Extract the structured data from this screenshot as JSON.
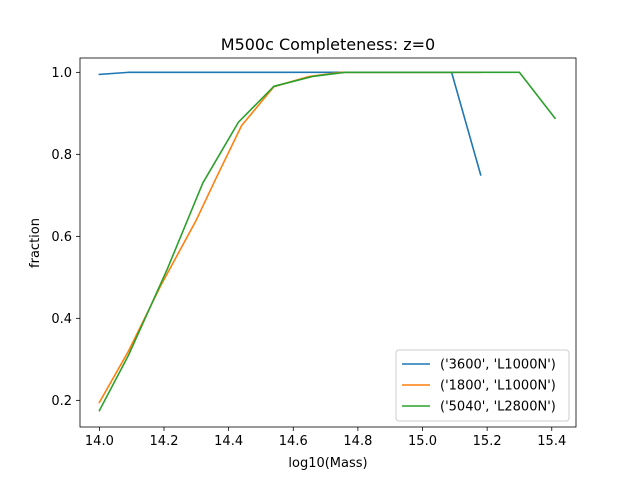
{
  "chart_data": {
    "type": "line",
    "title": "M500c Completeness: z=0",
    "xlabel": "log10(Mass)",
    "ylabel": "fraction",
    "xlim": [
      13.94,
      15.475
    ],
    "ylim": [
      0.135,
      1.035
    ],
    "xticks": [
      14.0,
      14.2,
      14.4,
      14.6,
      14.8,
      15.0,
      15.2,
      15.4
    ],
    "xtick_labels": [
      "14.0",
      "14.2",
      "14.4",
      "14.6",
      "14.8",
      "15.0",
      "15.2",
      "15.4"
    ],
    "yticks": [
      0.2,
      0.4,
      0.6,
      0.8,
      1.0
    ],
    "ytick_labels": [
      "0.2",
      "0.4",
      "0.6",
      "0.8",
      "1.0"
    ],
    "grid": false,
    "legend_position": "lower-right",
    "series": [
      {
        "name": "('3600', 'L1000N')",
        "color": "#1f77b4",
        "x": [
          14.0,
          14.09,
          14.2,
          14.3,
          14.4,
          14.5,
          14.6,
          14.7,
          14.8,
          14.9,
          15.0,
          15.09,
          15.18
        ],
        "y": [
          0.995,
          1.0,
          1.0,
          1.0,
          1.0,
          1.0,
          1.0,
          1.0,
          1.0,
          1.0,
          1.0,
          1.0,
          0.75
        ]
      },
      {
        "name": "('1800', 'L1000N')",
        "color": "#ff7f0e",
        "x": [
          14.0,
          14.09,
          14.19,
          14.3,
          14.36,
          14.44,
          14.54,
          14.65,
          14.75,
          14.87,
          14.97,
          15.08,
          15.18
        ],
        "y": [
          0.195,
          0.32,
          0.48,
          0.64,
          0.74,
          0.87,
          0.965,
          0.99,
          1.0,
          1.0,
          1.0,
          1.0,
          1.0
        ]
      },
      {
        "name": "('5040', 'L2800N')",
        "color": "#2ca02c",
        "x": [
          14.0,
          14.09,
          14.21,
          14.32,
          14.43,
          14.54,
          14.66,
          14.76,
          14.87,
          14.98,
          15.09,
          15.2,
          15.3,
          15.41
        ],
        "y": [
          0.175,
          0.31,
          0.52,
          0.73,
          0.878,
          0.966,
          0.99,
          1.0,
          1.0,
          1.0,
          1.0,
          1.0,
          1.0,
          0.888
        ]
      }
    ]
  }
}
